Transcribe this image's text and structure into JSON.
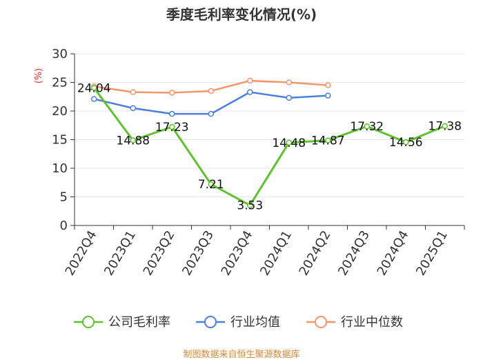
{
  "chart_data": {
    "type": "line",
    "title": "季度毛利率变化情况(%)",
    "unit_label": "(%)",
    "categories": [
      "2022Q4",
      "2023Q1",
      "2023Q2",
      "2023Q3",
      "2023Q4",
      "2024Q1",
      "2024Q2",
      "2024Q3",
      "2024Q4",
      "2025Q1"
    ],
    "ylim": [
      0,
      30
    ],
    "yticks": [
      0,
      5,
      10,
      15,
      20,
      25,
      30
    ],
    "legend_position": "bottom",
    "series": [
      {
        "name": "公司毛利率",
        "color": "#5ec22a",
        "values": [
          24.04,
          14.88,
          17.23,
          7.21,
          3.53,
          14.48,
          14.87,
          17.32,
          14.56,
          17.38
        ],
        "labels": [
          "24.04",
          "14.88",
          "17.23",
          "7.21",
          "3.53",
          "14.48",
          "14.87",
          "17.32",
          "14.56",
          "17.38"
        ]
      },
      {
        "name": "行业均值",
        "color": "#4a7fdd",
        "values": [
          22.1,
          20.5,
          19.5,
          19.5,
          23.3,
          22.3,
          22.7,
          null,
          null,
          null
        ]
      },
      {
        "name": "行业中位数",
        "color": "#f6956a",
        "values": [
          24.3,
          23.3,
          23.2,
          23.5,
          25.3,
          25.0,
          24.5,
          null,
          null,
          null
        ]
      }
    ],
    "source": "制图数据来自恒生聚源数据库"
  }
}
